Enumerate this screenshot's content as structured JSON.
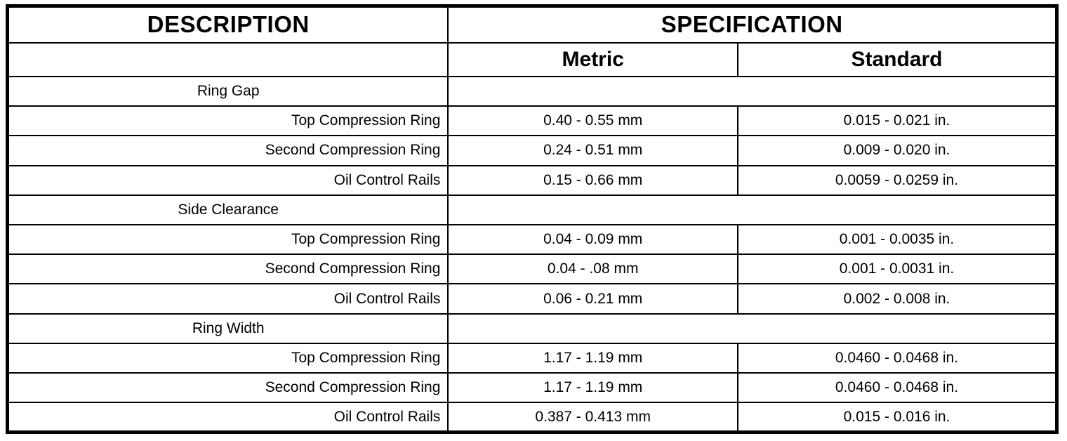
{
  "table": {
    "description_header": "DESCRIPTION",
    "specification_header": "SPECIFICATION",
    "metric_header": "Metric",
    "standard_header": "Standard",
    "rows": [
      {
        "type": "group",
        "description": "Ring Gap",
        "metric": "",
        "standard": ""
      },
      {
        "type": "item",
        "description": "Top Compression Ring",
        "metric": "0.40 - 0.55 mm",
        "standard": "0.015 - 0.021 in."
      },
      {
        "type": "item",
        "description": "Second Compression Ring",
        "metric": "0.24 - 0.51 mm",
        "standard": "0.009 - 0.020 in."
      },
      {
        "type": "item",
        "description": "Oil Control Rails",
        "metric": "0.15 - 0.66 mm",
        "standard": "0.0059 - 0.0259 in."
      },
      {
        "type": "group",
        "description": "Side Clearance",
        "metric": "",
        "standard": ""
      },
      {
        "type": "item",
        "description": "Top Compression Ring",
        "metric": "0.04 - 0.09 mm",
        "standard": "0.001 - 0.0035 in."
      },
      {
        "type": "item",
        "description": "Second Compression Ring",
        "metric": "0.04 - .08 mm",
        "standard": "0.001 - 0.0031 in."
      },
      {
        "type": "item",
        "description": "Oil Control Rails",
        "metric": "0.06 - 0.21 mm",
        "standard": "0.002 - 0.008 in."
      },
      {
        "type": "group",
        "description": "Ring Width",
        "metric": "",
        "standard": ""
      },
      {
        "type": "item",
        "description": "Top Compression Ring",
        "metric": "1.17 - 1.19 mm",
        "standard": "0.0460 - 0.0468 in."
      },
      {
        "type": "item",
        "description": "Second Compression Ring",
        "metric": "1.17 - 1.19 mm",
        "standard": "0.0460 - 0.0468 in."
      },
      {
        "type": "item",
        "description": "Oil Control Rails",
        "metric": "0.387 - 0.413 mm",
        "standard": "0.015 - 0.016 in."
      }
    ]
  }
}
